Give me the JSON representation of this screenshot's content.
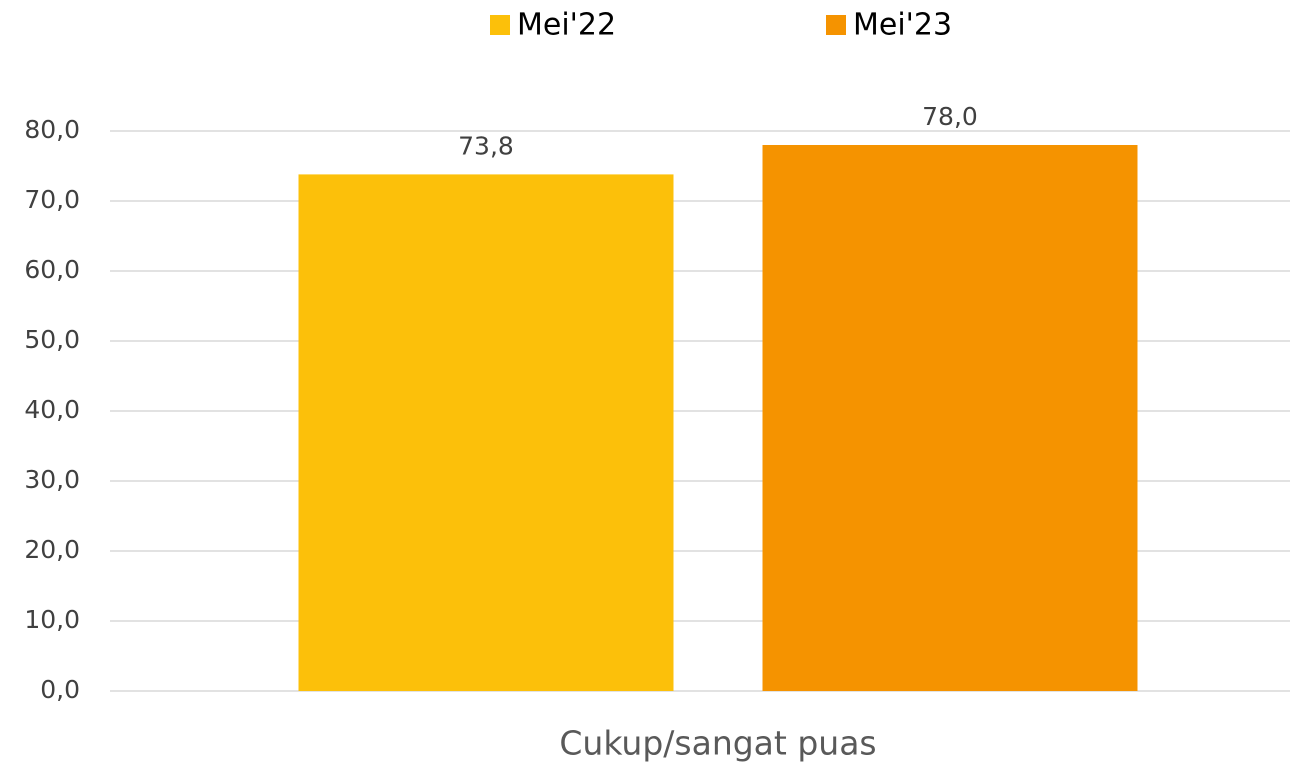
{
  "chart_data": {
    "type": "bar",
    "categories": [
      "Cukup/sangat puas"
    ],
    "series": [
      {
        "name": "Mei'22",
        "color": "#fcc00a",
        "values": [
          73.8
        ],
        "value_labels": [
          "73,8"
        ]
      },
      {
        "name": "Mei'23",
        "color": "#f59300",
        "values": [
          78.0
        ],
        "value_labels": [
          "78,0"
        ]
      }
    ],
    "ylim": [
      0,
      80
    ],
    "yticks": [
      {
        "value": 0,
        "label": "0,0"
      },
      {
        "value": 10,
        "label": "10,0"
      },
      {
        "value": 20,
        "label": "20,0"
      },
      {
        "value": 30,
        "label": "30,0"
      },
      {
        "value": 40,
        "label": "40,0"
      },
      {
        "value": 50,
        "label": "50,0"
      },
      {
        "value": 60,
        "label": "60,0"
      },
      {
        "value": 70,
        "label": "70,0"
      },
      {
        "value": 80,
        "label": "80,0"
      }
    ],
    "grid": true,
    "legend": "top"
  }
}
